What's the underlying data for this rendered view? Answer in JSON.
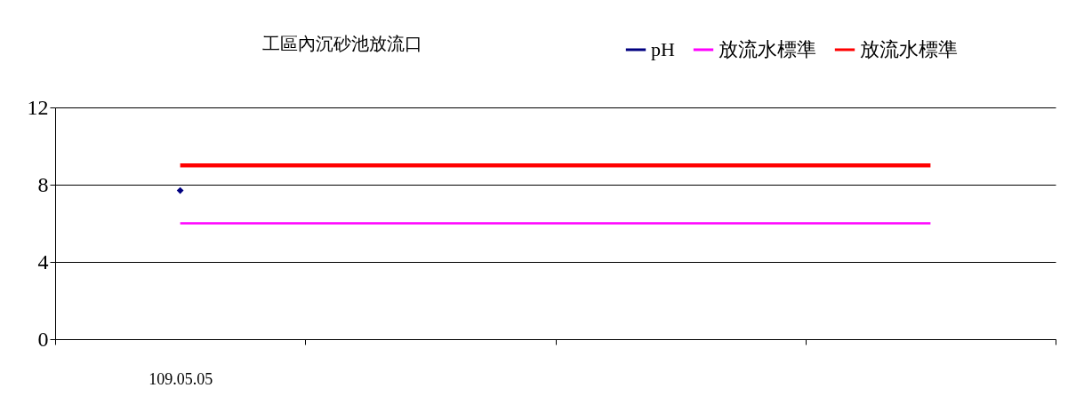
{
  "chart_data": {
    "type": "line",
    "title": "工區內沉砂池放流口",
    "categories": [
      "109.05.05",
      null,
      null,
      null
    ],
    "series": [
      {
        "name": "pH",
        "color": "#000080",
        "marker": "diamond",
        "values": [
          7.7,
          null,
          null,
          null
        ]
      },
      {
        "name": "放流水標準",
        "color": "#ff00ff",
        "values": [
          6,
          6,
          6,
          6
        ]
      },
      {
        "name": "放流水標準",
        "color": "#ff0000",
        "values": [
          9,
          9,
          9,
          9
        ]
      }
    ],
    "ylim": [
      0,
      12
    ],
    "yticks": [
      0,
      4,
      8,
      12
    ],
    "grid": "y",
    "legend": "top right"
  }
}
